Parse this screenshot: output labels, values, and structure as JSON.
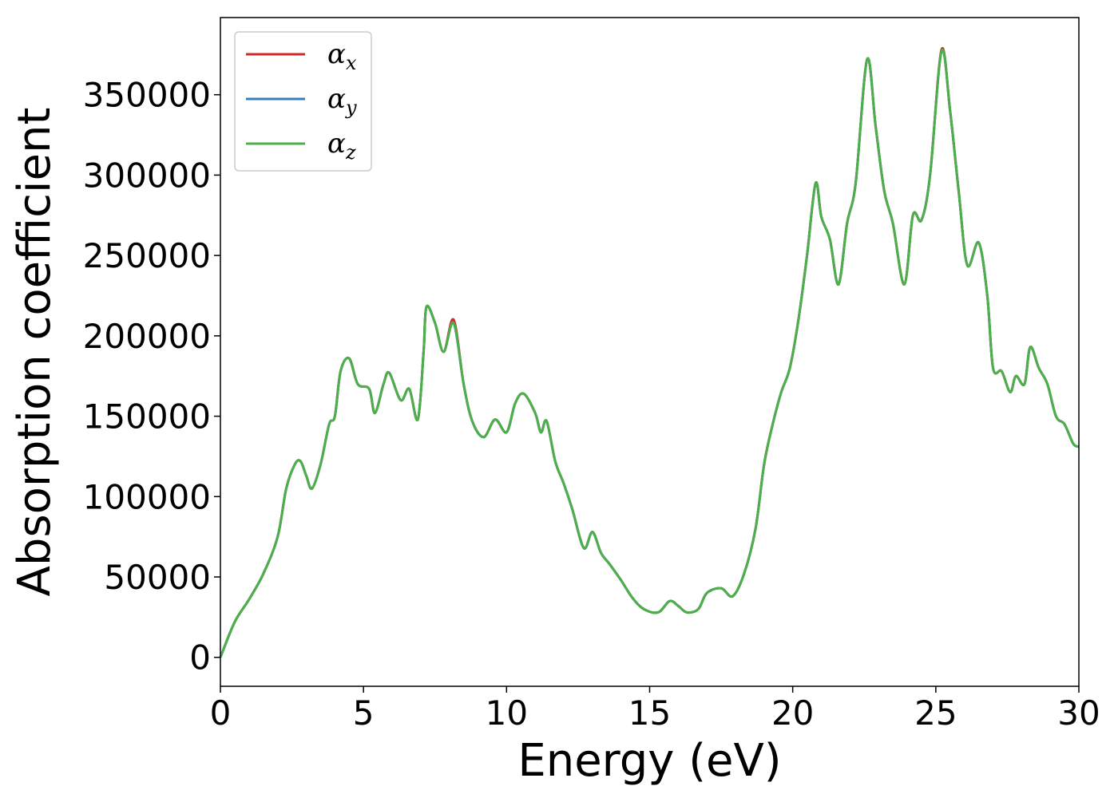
{
  "chart_data": {
    "type": "line",
    "title": "",
    "xlabel": "Energy (eV)",
    "ylabel": "Absorption coefficient",
    "xlim": [
      0,
      30
    ],
    "ylim": [
      -18000,
      398000
    ],
    "xticks": [
      0,
      5,
      10,
      15,
      20,
      25,
      30
    ],
    "yticks": [
      0,
      50000,
      100000,
      150000,
      200000,
      250000,
      300000,
      350000
    ],
    "grid": false,
    "legend_position": "top-left",
    "series": [
      {
        "name": "α",
        "subscript": "x",
        "color": "#d62728",
        "points": [
          [
            0,
            0
          ],
          [
            0.5,
            22000
          ],
          [
            1.0,
            36000
          ],
          [
            1.5,
            52000
          ],
          [
            2.0,
            75000
          ],
          [
            2.3,
            105000
          ],
          [
            2.6,
            120000
          ],
          [
            2.8,
            122000
          ],
          [
            3.0,
            113000
          ],
          [
            3.2,
            105000
          ],
          [
            3.5,
            120000
          ],
          [
            3.8,
            145000
          ],
          [
            4.0,
            150000
          ],
          [
            4.2,
            178000
          ],
          [
            4.5,
            186000
          ],
          [
            4.8,
            170000
          ],
          [
            5.2,
            167000
          ],
          [
            5.4,
            152000
          ],
          [
            5.7,
            170000
          ],
          [
            5.9,
            177000
          ],
          [
            6.3,
            160000
          ],
          [
            6.6,
            167000
          ],
          [
            6.9,
            148000
          ],
          [
            7.1,
            190000
          ],
          [
            7.2,
            218000
          ],
          [
            7.5,
            208000
          ],
          [
            7.8,
            190000
          ],
          [
            8.15,
            210000
          ],
          [
            8.5,
            170000
          ],
          [
            8.8,
            147000
          ],
          [
            9.2,
            137000
          ],
          [
            9.6,
            148000
          ],
          [
            10.0,
            140000
          ],
          [
            10.3,
            158000
          ],
          [
            10.6,
            164000
          ],
          [
            11.0,
            152000
          ],
          [
            11.2,
            140000
          ],
          [
            11.4,
            147000
          ],
          [
            11.7,
            122000
          ],
          [
            12.0,
            108000
          ],
          [
            12.3,
            92000
          ],
          [
            12.7,
            68000
          ],
          [
            13.0,
            78000
          ],
          [
            13.3,
            65000
          ],
          [
            13.6,
            58000
          ],
          [
            14.0,
            48000
          ],
          [
            14.4,
            37000
          ],
          [
            14.8,
            30000
          ],
          [
            15.3,
            28000
          ],
          [
            15.7,
            35000
          ],
          [
            16.0,
            32000
          ],
          [
            16.3,
            28000
          ],
          [
            16.7,
            30000
          ],
          [
            17.0,
            40000
          ],
          [
            17.5,
            43000
          ],
          [
            17.9,
            38000
          ],
          [
            18.3,
            52000
          ],
          [
            18.7,
            80000
          ],
          [
            19.0,
            120000
          ],
          [
            19.3,
            145000
          ],
          [
            19.6,
            165000
          ],
          [
            19.9,
            180000
          ],
          [
            20.2,
            210000
          ],
          [
            20.5,
            250000
          ],
          [
            20.8,
            295000
          ],
          [
            21.0,
            274000
          ],
          [
            21.3,
            260000
          ],
          [
            21.6,
            232000
          ],
          [
            21.9,
            270000
          ],
          [
            22.2,
            295000
          ],
          [
            22.6,
            372000
          ],
          [
            22.9,
            330000
          ],
          [
            23.2,
            290000
          ],
          [
            23.5,
            270000
          ],
          [
            23.9,
            232000
          ],
          [
            24.2,
            275000
          ],
          [
            24.5,
            272000
          ],
          [
            24.8,
            300000
          ],
          [
            25.2,
            378000
          ],
          [
            25.5,
            340000
          ],
          [
            25.8,
            290000
          ],
          [
            26.1,
            244000
          ],
          [
            26.5,
            258000
          ],
          [
            26.8,
            225000
          ],
          [
            27.0,
            180000
          ],
          [
            27.3,
            178000
          ],
          [
            27.6,
            165000
          ],
          [
            27.8,
            175000
          ],
          [
            28.1,
            170000
          ],
          [
            28.3,
            193000
          ],
          [
            28.6,
            180000
          ],
          [
            28.9,
            170000
          ],
          [
            29.2,
            150000
          ],
          [
            29.5,
            145000
          ],
          [
            29.8,
            133000
          ],
          [
            30.0,
            131000
          ]
        ]
      },
      {
        "name": "α",
        "subscript": "y",
        "color": "#377eb8",
        "points": [
          [
            0,
            0
          ],
          [
            0.5,
            22000
          ],
          [
            1.0,
            36000
          ],
          [
            1.5,
            52000
          ],
          [
            2.0,
            75000
          ],
          [
            2.3,
            105000
          ],
          [
            2.6,
            120000
          ],
          [
            2.8,
            122000
          ],
          [
            3.0,
            113000
          ],
          [
            3.2,
            105000
          ],
          [
            3.5,
            120000
          ],
          [
            3.8,
            145000
          ],
          [
            4.0,
            150000
          ],
          [
            4.2,
            178000
          ],
          [
            4.5,
            186000
          ],
          [
            4.8,
            170000
          ],
          [
            5.2,
            167000
          ],
          [
            5.4,
            152000
          ],
          [
            5.7,
            170000
          ],
          [
            5.9,
            177000
          ],
          [
            6.3,
            160000
          ],
          [
            6.6,
            167000
          ],
          [
            6.9,
            148000
          ],
          [
            7.1,
            190000
          ],
          [
            7.2,
            218000
          ],
          [
            7.5,
            208000
          ],
          [
            7.8,
            190000
          ],
          [
            8.15,
            208000
          ],
          [
            8.5,
            170000
          ],
          [
            8.8,
            147000
          ],
          [
            9.2,
            137000
          ],
          [
            9.6,
            148000
          ],
          [
            10.0,
            140000
          ],
          [
            10.3,
            158000
          ],
          [
            10.6,
            164000
          ],
          [
            11.0,
            152000
          ],
          [
            11.2,
            140000
          ],
          [
            11.4,
            147000
          ],
          [
            11.7,
            122000
          ],
          [
            12.0,
            108000
          ],
          [
            12.3,
            92000
          ],
          [
            12.7,
            68000
          ],
          [
            13.0,
            78000
          ],
          [
            13.3,
            65000
          ],
          [
            13.6,
            58000
          ],
          [
            14.0,
            48000
          ],
          [
            14.4,
            37000
          ],
          [
            14.8,
            30000
          ],
          [
            15.3,
            28000
          ],
          [
            15.7,
            35000
          ],
          [
            16.0,
            32000
          ],
          [
            16.3,
            28000
          ],
          [
            16.7,
            30000
          ],
          [
            17.0,
            40000
          ],
          [
            17.5,
            43000
          ],
          [
            17.9,
            38000
          ],
          [
            18.3,
            52000
          ],
          [
            18.7,
            80000
          ],
          [
            19.0,
            120000
          ],
          [
            19.3,
            145000
          ],
          [
            19.6,
            165000
          ],
          [
            19.9,
            180000
          ],
          [
            20.2,
            210000
          ],
          [
            20.5,
            250000
          ],
          [
            20.8,
            295000
          ],
          [
            21.0,
            274000
          ],
          [
            21.3,
            260000
          ],
          [
            21.6,
            232000
          ],
          [
            21.9,
            270000
          ],
          [
            22.2,
            295000
          ],
          [
            22.6,
            372000
          ],
          [
            22.9,
            330000
          ],
          [
            23.2,
            290000
          ],
          [
            23.5,
            270000
          ],
          [
            23.9,
            232000
          ],
          [
            24.2,
            275000
          ],
          [
            24.5,
            272000
          ],
          [
            24.8,
            300000
          ],
          [
            25.2,
            377000
          ],
          [
            25.5,
            340000
          ],
          [
            25.8,
            290000
          ],
          [
            26.1,
            244000
          ],
          [
            26.5,
            258000
          ],
          [
            26.8,
            225000
          ],
          [
            27.0,
            180000
          ],
          [
            27.3,
            178000
          ],
          [
            27.6,
            165000
          ],
          [
            27.8,
            175000
          ],
          [
            28.1,
            170000
          ],
          [
            28.3,
            193000
          ],
          [
            28.6,
            180000
          ],
          [
            28.9,
            170000
          ],
          [
            29.2,
            150000
          ],
          [
            29.5,
            145000
          ],
          [
            29.8,
            133000
          ],
          [
            30.0,
            131000
          ]
        ]
      },
      {
        "name": "α",
        "subscript": "z",
        "color": "#4daf4a",
        "points": [
          [
            0,
            0
          ],
          [
            0.5,
            22000
          ],
          [
            1.0,
            36000
          ],
          [
            1.5,
            52000
          ],
          [
            2.0,
            75000
          ],
          [
            2.3,
            105000
          ],
          [
            2.6,
            120000
          ],
          [
            2.8,
            122000
          ],
          [
            3.0,
            113000
          ],
          [
            3.2,
            105000
          ],
          [
            3.5,
            120000
          ],
          [
            3.8,
            145000
          ],
          [
            4.0,
            150000
          ],
          [
            4.2,
            178000
          ],
          [
            4.5,
            186000
          ],
          [
            4.8,
            170000
          ],
          [
            5.2,
            167000
          ],
          [
            5.4,
            152000
          ],
          [
            5.7,
            170000
          ],
          [
            5.9,
            177000
          ],
          [
            6.3,
            160000
          ],
          [
            6.6,
            167000
          ],
          [
            6.9,
            148000
          ],
          [
            7.1,
            190000
          ],
          [
            7.2,
            218000
          ],
          [
            7.5,
            208000
          ],
          [
            7.8,
            190000
          ],
          [
            8.15,
            208000
          ],
          [
            8.5,
            170000
          ],
          [
            8.8,
            147000
          ],
          [
            9.2,
            137000
          ],
          [
            9.6,
            148000
          ],
          [
            10.0,
            140000
          ],
          [
            10.3,
            158000
          ],
          [
            10.6,
            164000
          ],
          [
            11.0,
            152000
          ],
          [
            11.2,
            140000
          ],
          [
            11.4,
            147000
          ],
          [
            11.7,
            122000
          ],
          [
            12.0,
            108000
          ],
          [
            12.3,
            92000
          ],
          [
            12.7,
            68000
          ],
          [
            13.0,
            78000
          ],
          [
            13.3,
            65000
          ],
          [
            13.6,
            58000
          ],
          [
            14.0,
            48000
          ],
          [
            14.4,
            37000
          ],
          [
            14.8,
            30000
          ],
          [
            15.3,
            28000
          ],
          [
            15.7,
            35000
          ],
          [
            16.0,
            32000
          ],
          [
            16.3,
            28000
          ],
          [
            16.7,
            30000
          ],
          [
            17.0,
            40000
          ],
          [
            17.5,
            43000
          ],
          [
            17.9,
            38000
          ],
          [
            18.3,
            52000
          ],
          [
            18.7,
            80000
          ],
          [
            19.0,
            120000
          ],
          [
            19.3,
            145000
          ],
          [
            19.6,
            165000
          ],
          [
            19.9,
            180000
          ],
          [
            20.2,
            210000
          ],
          [
            20.5,
            250000
          ],
          [
            20.8,
            295000
          ],
          [
            21.0,
            274000
          ],
          [
            21.3,
            260000
          ],
          [
            21.6,
            232000
          ],
          [
            21.9,
            270000
          ],
          [
            22.2,
            295000
          ],
          [
            22.6,
            372000
          ],
          [
            22.9,
            330000
          ],
          [
            23.2,
            290000
          ],
          [
            23.5,
            270000
          ],
          [
            23.9,
            232000
          ],
          [
            24.2,
            275000
          ],
          [
            24.5,
            272000
          ],
          [
            24.8,
            300000
          ],
          [
            25.2,
            377000
          ],
          [
            25.5,
            340000
          ],
          [
            25.8,
            290000
          ],
          [
            26.1,
            244000
          ],
          [
            26.5,
            258000
          ],
          [
            26.8,
            225000
          ],
          [
            27.0,
            180000
          ],
          [
            27.3,
            178000
          ],
          [
            27.6,
            165000
          ],
          [
            27.8,
            175000
          ],
          [
            28.1,
            170000
          ],
          [
            28.3,
            193000
          ],
          [
            28.6,
            180000
          ],
          [
            28.9,
            170000
          ],
          [
            29.2,
            150000
          ],
          [
            29.5,
            145000
          ],
          [
            29.8,
            133000
          ],
          [
            30.0,
            131000
          ]
        ]
      }
    ]
  }
}
